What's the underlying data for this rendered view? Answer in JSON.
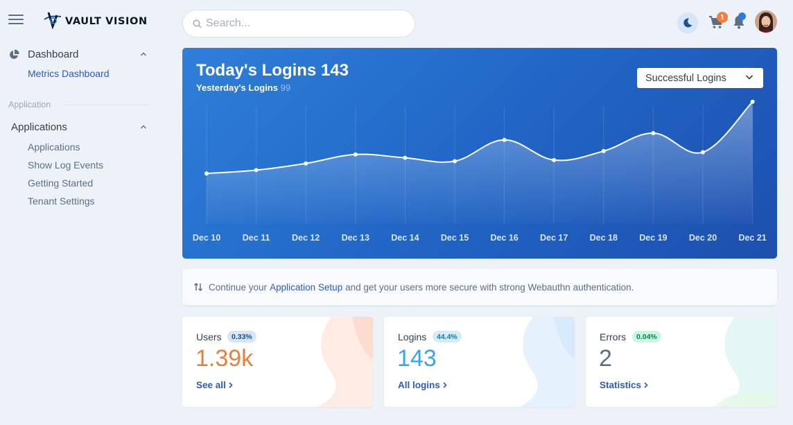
{
  "header": {
    "logo_text": "VAULT VISION",
    "search": {
      "placeholder": "Search...",
      "value": ""
    },
    "cart_badge": "1"
  },
  "sidebar": {
    "dashboard": {
      "label": "Dashboard",
      "items": [
        {
          "label": "Metrics Dashboard"
        }
      ]
    },
    "section_label": "Application",
    "applications": {
      "label": "Applications",
      "items": [
        {
          "label": "Applications"
        },
        {
          "label": "Show Log Events"
        },
        {
          "label": "Getting Started"
        },
        {
          "label": "Tenant Settings"
        }
      ]
    }
  },
  "main": {
    "chart_card": {
      "title": "Today's Logins 143",
      "subtitle_label": "Yesterday's Logins",
      "subtitle_value": "99",
      "select_value": "Successful Logins"
    },
    "banner": {
      "text_before": "Continue your",
      "link": "Application Setup",
      "text_after": "and get your users more secure with strong Webauthn authentication."
    },
    "stats": [
      {
        "label": "Users",
        "badge": "0.33%",
        "value": "1.39k",
        "link": "See all",
        "value_color": "#e6813d",
        "badge_bg": "#d5e5fa",
        "badge_color": "#1c4f93"
      },
      {
        "label": "Logins",
        "badge": "44.4%",
        "value": "143",
        "link": "All logins",
        "value_color": "#3aa6e8",
        "badge_bg": "#d5ecf5",
        "badge_color": "#1978a2"
      },
      {
        "label": "Errors",
        "badge": "0.04%",
        "value": "2",
        "link": "Statistics",
        "value_color": "#5e6e82",
        "badge_bg": "#ccf6e4",
        "badge_color": "#00864e"
      }
    ]
  },
  "chart_data": {
    "type": "area",
    "categories": [
      "Dec 10",
      "Dec 11",
      "Dec 12",
      "Dec 13",
      "Dec 14",
      "Dec 15",
      "Dec 16",
      "Dec 17",
      "Dec 18",
      "Dec 19",
      "Dec 20",
      "Dec 21"
    ],
    "values": [
      45,
      48,
      54,
      62,
      59,
      56,
      75,
      57,
      65,
      81,
      64,
      109
    ],
    "ylim": [
      0,
      120
    ],
    "grid": "vertical",
    "xlabel": "",
    "ylabel": ""
  },
  "colors": {
    "accent": "#2c7be5",
    "link": "#2c5bbf",
    "card_gradient_start": "#2f7fd9",
    "card_gradient_end": "#1d4fae"
  }
}
